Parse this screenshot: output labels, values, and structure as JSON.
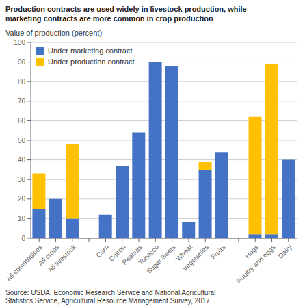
{
  "chart_data": {
    "type": "bar",
    "title": "Production contracts are used widely in livestock production, while\nmarketing contracts are more common in crop production",
    "ylabel": "Value of production (percent)",
    "source": "Source: USDA, Economic Research Service and National Agricultural\nStatistics Service, Agricultural Resource Management Survey, 2017.",
    "categories": [
      "All commodities",
      "All crops",
      "All livestock",
      null,
      "Corn",
      "Cotton",
      "Peanuts",
      "Tobacco",
      "Sugar Beets",
      "Wheat",
      "Vegetables",
      "Fruits",
      null,
      "Hogs",
      "Poultry and eggs",
      "Dairy"
    ],
    "series": [
      {
        "name": "Under marketing contract",
        "color": "#4472C4",
        "values": [
          15,
          20,
          10,
          0,
          12,
          37,
          54,
          90,
          88,
          8,
          35,
          44,
          0,
          2,
          2,
          40
        ]
      },
      {
        "name": "Under production contract",
        "color": "#FFC000",
        "values": [
          18,
          0,
          38,
          0,
          0,
          0,
          0,
          0,
          0,
          0,
          4,
          0,
          0,
          60,
          87,
          0
        ]
      }
    ],
    "stacked": true,
    "ylim": [
      0,
      100
    ],
    "yticks": [
      0,
      10,
      20,
      30,
      40,
      50,
      60,
      70,
      80,
      90,
      100
    ],
    "grid": true,
    "legend": "upper left"
  }
}
